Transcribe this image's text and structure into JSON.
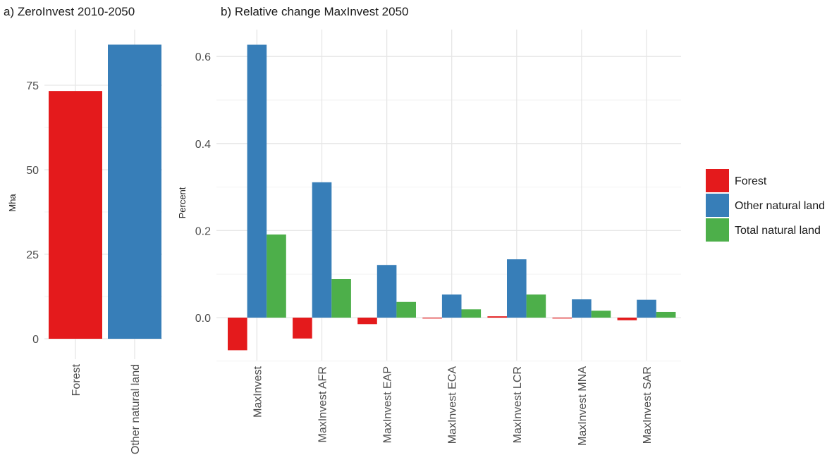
{
  "chart_data": [
    {
      "type": "bar",
      "title": "a) ZeroInvest 2010-2050",
      "xlabel": "",
      "ylabel": "Mha",
      "categories": [
        "Forest",
        "Other natural land"
      ],
      "values": [
        73.3,
        87.0
      ],
      "colors": [
        "#E41A1C",
        "#377EB8"
      ],
      "ylim": [
        0,
        87
      ],
      "yticks": [
        0,
        25,
        50,
        75
      ],
      "grid": true
    },
    {
      "type": "bar",
      "title": "b) Relative change MaxInvest 2050",
      "xlabel": "",
      "ylabel": "Percent",
      "categories": [
        "MaxInvest",
        "MaxInvest AFR",
        "MaxInvest EAP",
        "MaxInvest ECA",
        "MaxInvest LCR",
        "MaxInvest MNA",
        "MaxInvest SAR"
      ],
      "series": [
        {
          "name": "Forest",
          "color": "#E41A1C",
          "values": [
            -0.075,
            -0.048,
            -0.015,
            -0.002,
            0.003,
            -0.002,
            -0.006
          ]
        },
        {
          "name": "Other natural land",
          "color": "#377EB8",
          "values": [
            0.627,
            0.311,
            0.121,
            0.053,
            0.134,
            0.042,
            0.041
          ]
        },
        {
          "name": "Total natural land",
          "color": "#4DAF4A",
          "values": [
            0.191,
            0.089,
            0.036,
            0.019,
            0.053,
            0.016,
            0.013
          ]
        }
      ],
      "ylim": [
        -0.1,
        0.65
      ],
      "yticks": [
        "0.0",
        "0.2",
        "0.4",
        "0.6"
      ],
      "legend": "right",
      "grid": true
    }
  ]
}
